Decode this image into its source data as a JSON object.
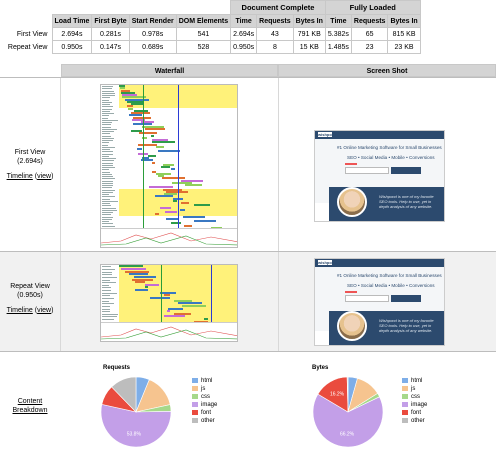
{
  "summary": {
    "group_headers": {
      "document_complete": "Document Complete",
      "fully_loaded": "Fully Loaded"
    },
    "columns": [
      "Load Time",
      "First Byte",
      "Start Render",
      "DOM Elements",
      "Time",
      "Requests",
      "Bytes In",
      "Time",
      "Requests",
      "Bytes In"
    ],
    "rows": [
      {
        "label": "First View",
        "values": [
          "2.694s",
          "0.281s",
          "0.978s",
          "541",
          "2.694s",
          "43",
          "791 KB",
          "5.382s",
          "65",
          "815 KB"
        ]
      },
      {
        "label": "Repeat View",
        "values": [
          "0.950s",
          "0.147s",
          "0.689s",
          "528",
          "0.950s",
          "8",
          "15 KB",
          "1.485s",
          "23",
          "23 KB"
        ]
      }
    ]
  },
  "grid": {
    "headers": {
      "waterfall": "Waterfall",
      "screenshot": "Screen Shot"
    },
    "first_view": {
      "title": "First View",
      "time": "(2.694s)",
      "timeline": "Timeline",
      "view": "view"
    },
    "repeat_view": {
      "title": "Repeat View",
      "time": "(0.950s)",
      "timeline": "Timeline",
      "view": "view"
    },
    "content_breakdown": "Content Breakdown"
  },
  "screenshot": {
    "logo": "wishpond",
    "headline": "#1 Online Marketing Software for Small Businesses",
    "subline": "SEO • Social Media • Mobile • Conversions",
    "quote": "Wishpond is one of my favorite SEO tools. Help to use, yet in depth analysis of any website."
  },
  "chart_data": [
    {
      "type": "pie",
      "title": "Requests",
      "categories": [
        "html",
        "js",
        "css",
        "image",
        "font",
        "other"
      ],
      "values": [
        6.2,
        15.4,
        3.1,
        53.8,
        9.2,
        12.3
      ],
      "labels": [
        "",
        "",
        "",
        "53.8%",
        "",
        ""
      ],
      "colors": [
        "#7eaee8",
        "#f6c48f",
        "#a6d88a",
        "#c39fe8",
        "#ea4b3e",
        "#bdbdbd"
      ]
    },
    {
      "type": "pie",
      "title": "Bytes",
      "categories": [
        "html",
        "js",
        "css",
        "image",
        "font",
        "other"
      ],
      "values": [
        4.4,
        11.8,
        1.8,
        66.2,
        16.2,
        0.4
      ],
      "labels": [
        "",
        "",
        "",
        "66.2%",
        "16.2%",
        ""
      ],
      "colors": [
        "#7eaee8",
        "#f6c48f",
        "#a6d88a",
        "#c39fe8",
        "#ea4b3e",
        "#bdbdbd"
      ]
    }
  ]
}
